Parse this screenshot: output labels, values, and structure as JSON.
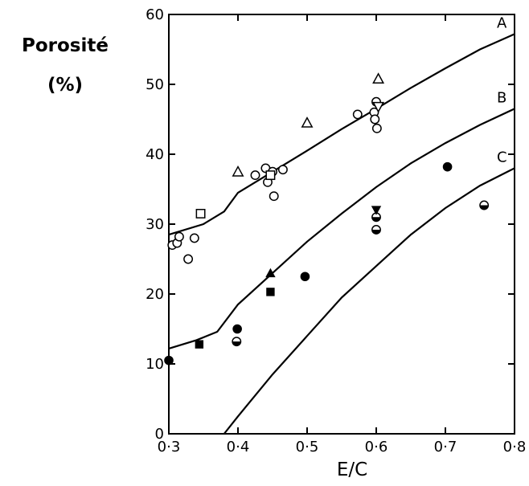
{
  "chart_data": {
    "type": "scatter",
    "ylabel_line1": "Porosité",
    "ylabel_line2": "(%)",
    "xlabel": "E/C",
    "xlim": [
      0.3,
      0.8
    ],
    "ylim": [
      0,
      60
    ],
    "x_ticks": [
      {
        "v": 0.3,
        "label": "0·3"
      },
      {
        "v": 0.4,
        "label": "0·4"
      },
      {
        "v": 0.5,
        "label": "0·5"
      },
      {
        "v": 0.6,
        "label": "0·6"
      },
      {
        "v": 0.7,
        "label": "0·7"
      },
      {
        "v": 0.8,
        "label": "0·8"
      }
    ],
    "y_ticks": [
      {
        "v": 0,
        "label": "0"
      },
      {
        "v": 10,
        "label": "10"
      },
      {
        "v": 20,
        "label": "20"
      },
      {
        "v": 30,
        "label": "30"
      },
      {
        "v": 40,
        "label": "40"
      },
      {
        "v": 50,
        "label": "50"
      },
      {
        "v": 60,
        "label": "60"
      }
    ],
    "grid": false,
    "curves": [
      {
        "label": "A",
        "points": [
          [
            0.3,
            28.5
          ],
          [
            0.35,
            30
          ],
          [
            0.38,
            31.8
          ],
          [
            0.4,
            34.5
          ],
          [
            0.45,
            37.5
          ],
          [
            0.5,
            40.5
          ],
          [
            0.55,
            43.6
          ],
          [
            0.6,
            46.5
          ],
          [
            0.65,
            49.5
          ],
          [
            0.7,
            52.3
          ],
          [
            0.75,
            55
          ],
          [
            0.8,
            57.2
          ]
        ]
      },
      {
        "label": "B",
        "points": [
          [
            0.3,
            12.2
          ],
          [
            0.34,
            13.4
          ],
          [
            0.37,
            14.6
          ],
          [
            0.4,
            18.5
          ],
          [
            0.45,
            23
          ],
          [
            0.5,
            27.5
          ],
          [
            0.55,
            31.5
          ],
          [
            0.6,
            35.3
          ],
          [
            0.65,
            38.7
          ],
          [
            0.7,
            41.6
          ],
          [
            0.75,
            44.2
          ],
          [
            0.8,
            46.5
          ]
        ]
      },
      {
        "label": "C",
        "points": [
          [
            0.38,
            0
          ],
          [
            0.4,
            2.5
          ],
          [
            0.45,
            8.5
          ],
          [
            0.5,
            14
          ],
          [
            0.55,
            19.5
          ],
          [
            0.6,
            24
          ],
          [
            0.65,
            28.5
          ],
          [
            0.7,
            32.3
          ],
          [
            0.75,
            35.5
          ],
          [
            0.8,
            38
          ]
        ]
      }
    ],
    "series": [
      {
        "marker": "open-circle",
        "points": [
          [
            0.305,
            27
          ],
          [
            0.312,
            27.3
          ],
          [
            0.315,
            28.2
          ],
          [
            0.328,
            25
          ],
          [
            0.337,
            28
          ],
          [
            0.425,
            37
          ],
          [
            0.44,
            38
          ],
          [
            0.443,
            36
          ],
          [
            0.45,
            37.5
          ],
          [
            0.452,
            34
          ],
          [
            0.465,
            37.8
          ],
          [
            0.573,
            45.7
          ],
          [
            0.597,
            46
          ],
          [
            0.598,
            45
          ],
          [
            0.6,
            47.5
          ],
          [
            0.601,
            43.7
          ]
        ]
      },
      {
        "marker": "open-triangle",
        "points": [
          [
            0.4,
            37.5
          ],
          [
            0.5,
            44.5
          ],
          [
            0.603,
            50.8
          ]
        ]
      },
      {
        "marker": "open-inverted-triangle",
        "points": [
          [
            0.603,
            46.8
          ]
        ]
      },
      {
        "marker": "open-square",
        "points": [
          [
            0.346,
            31.5
          ],
          [
            0.447,
            37
          ]
        ]
      },
      {
        "marker": "filled-circle",
        "points": [
          [
            0.3,
            10.5
          ],
          [
            0.399,
            15
          ],
          [
            0.497,
            22.5
          ],
          [
            0.703,
            38.2
          ]
        ]
      },
      {
        "marker": "half-circle",
        "points": [
          [
            0.398,
            13.2
          ],
          [
            0.6,
            31
          ],
          [
            0.6,
            29.2
          ],
          [
            0.756,
            32.7
          ]
        ]
      },
      {
        "marker": "filled-square",
        "points": [
          [
            0.344,
            12.8
          ],
          [
            0.447,
            20.3
          ]
        ]
      },
      {
        "marker": "filled-triangle",
        "points": [
          [
            0.447,
            23
          ]
        ]
      },
      {
        "marker": "filled-inverted-triangle",
        "points": [
          [
            0.6,
            32
          ]
        ]
      }
    ]
  }
}
